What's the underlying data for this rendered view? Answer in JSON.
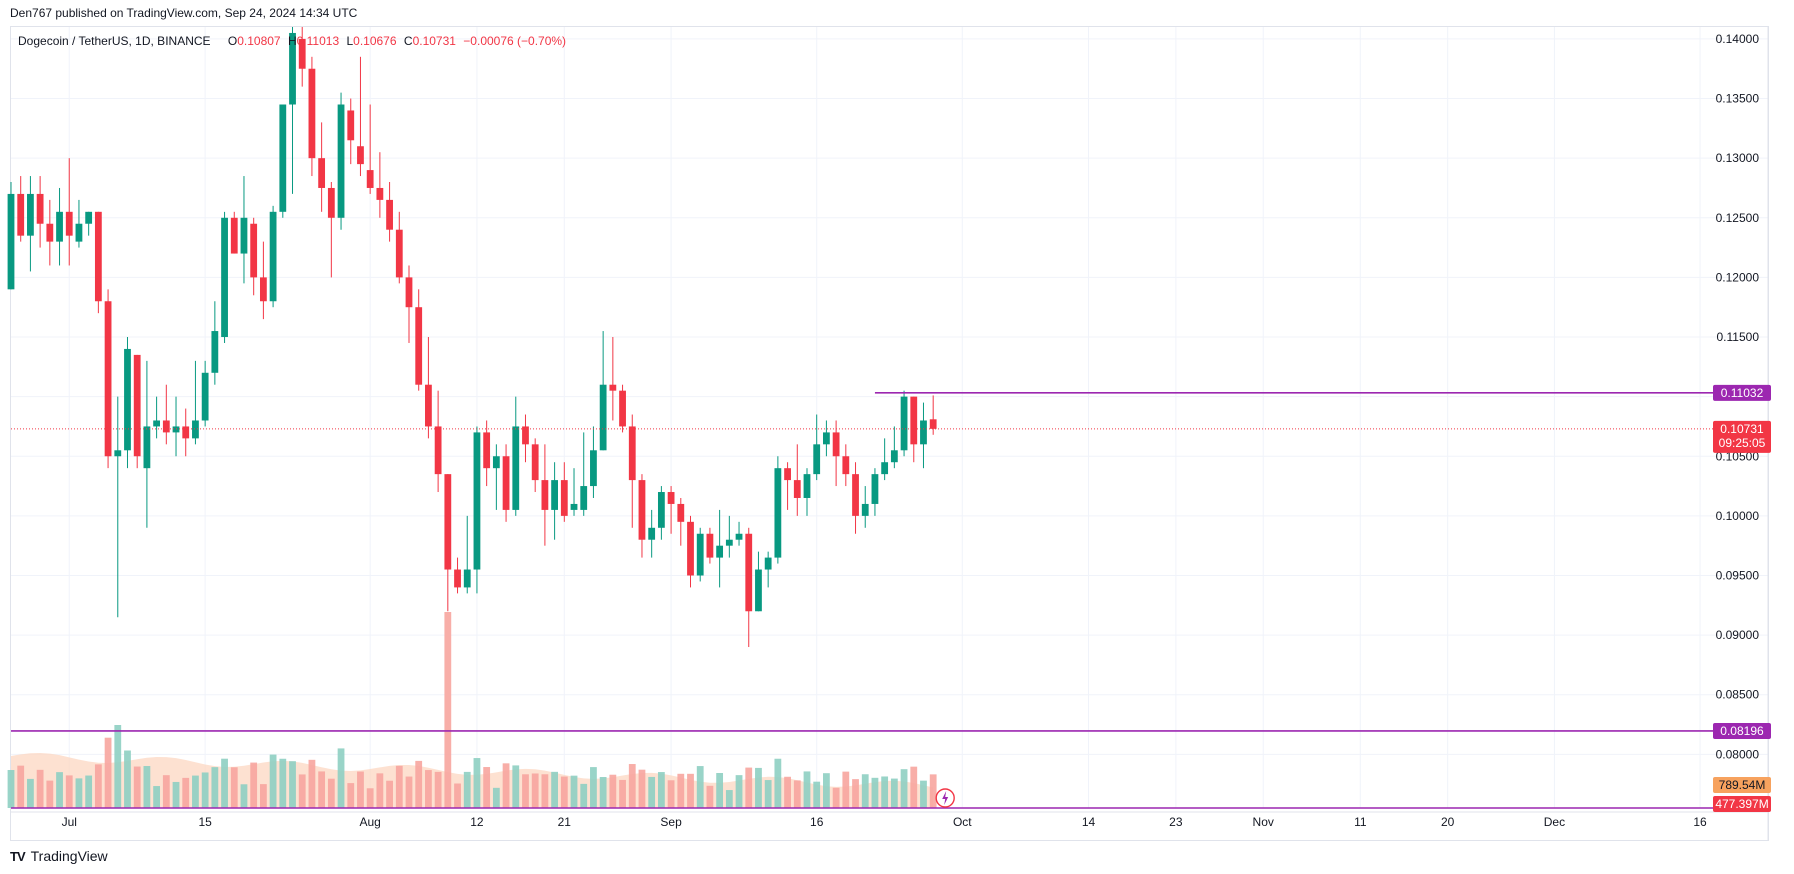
{
  "publisher": "Den767 published on TradingView.com, Sep 24, 2024 14:34 UTC",
  "legend": {
    "symbol": "Dogecoin / TetherUS, 1D, BINANCE",
    "o_label": "O",
    "o": "0.10807",
    "h_label": "H",
    "h": "0.11013",
    "l_label": "L",
    "l": "0.10676",
    "c_label": "C",
    "c": "0.10731",
    "change": "−0.00076 (−0.70%)"
  },
  "brand": {
    "name": "TradingView",
    "logo": "TV"
  },
  "colors": {
    "up": "#089981",
    "down": "#f23645",
    "level": "#9c27b0",
    "volume_up": "#f7a59e",
    "volume_ma": "#fcd7c2"
  },
  "chart_data": {
    "type": "candlestick",
    "title": "Dogecoin / TetherUS, 1D, BINANCE",
    "ylim": [
      0.0755,
      0.141
    ],
    "y_ticks": [
      "0.14000",
      "0.13500",
      "0.13000",
      "0.12500",
      "0.12000",
      "0.11500",
      "0.10500",
      "0.10000",
      "0.09500",
      "0.09000",
      "0.08500",
      "0.08000"
    ],
    "y_tick_values": [
      0.14,
      0.135,
      0.13,
      0.125,
      0.12,
      0.115,
      0.105,
      0.1,
      0.095,
      0.09,
      0.085,
      0.08
    ],
    "x_ticks": [
      {
        "label": "Jul",
        "day": 0
      },
      {
        "label": "15",
        "day": 14
      },
      {
        "label": "Aug",
        "day": 31
      },
      {
        "label": "12",
        "day": 42
      },
      {
        "label": "21",
        "day": 51
      },
      {
        "label": "Sep",
        "day": 62
      },
      {
        "label": "16",
        "day": 77
      },
      {
        "label": "Oct",
        "day": 92
      },
      {
        "label": "14",
        "day": 105
      },
      {
        "label": "23",
        "day": 114
      },
      {
        "label": "Nov",
        "day": 123
      },
      {
        "label": "11",
        "day": 133
      },
      {
        "label": "20",
        "day": 142
      },
      {
        "label": "Dec",
        "day": 153
      },
      {
        "label": "16",
        "day": 168
      }
    ],
    "first_day": -6,
    "last_day": 175,
    "candles": [
      [
        0.119,
        0.127,
        0.128,
        0.119
      ],
      [
        0.127,
        0.1235,
        0.1285,
        0.123
      ],
      [
        0.1235,
        0.127,
        0.1285,
        0.1205
      ],
      [
        0.127,
        0.1245,
        0.1285,
        0.1225
      ],
      [
        0.1245,
        0.123,
        0.1265,
        0.121
      ],
      [
        0.123,
        0.1255,
        0.1275,
        0.121
      ],
      [
        0.1255,
        0.1235,
        0.13,
        0.121
      ],
      [
        0.123,
        0.1245,
        0.1265,
        0.1225
      ],
      [
        0.1245,
        0.1255,
        0.1255,
        0.1235
      ],
      [
        0.1255,
        0.118,
        0.1255,
        0.117
      ],
      [
        0.118,
        0.105,
        0.119,
        0.104
      ],
      [
        0.105,
        0.1055,
        0.11,
        0.0915
      ],
      [
        0.1055,
        0.114,
        0.115,
        0.104
      ],
      [
        0.1135,
        0.105,
        0.1135,
        0.104
      ],
      [
        0.104,
        0.1075,
        0.113,
        0.099
      ],
      [
        0.1075,
        0.108,
        0.11,
        0.1065
      ],
      [
        0.108,
        0.107,
        0.111,
        0.106
      ],
      [
        0.107,
        0.1075,
        0.11,
        0.105
      ],
      [
        0.1075,
        0.1065,
        0.109,
        0.105
      ],
      [
        0.1065,
        0.108,
        0.113,
        0.106
      ],
      [
        0.108,
        0.112,
        0.113,
        0.1075
      ],
      [
        0.112,
        0.1155,
        0.118,
        0.111
      ],
      [
        0.115,
        0.125,
        0.1255,
        0.1145
      ],
      [
        0.125,
        0.122,
        0.1255,
        0.122
      ],
      [
        0.122,
        0.125,
        0.1285,
        0.1195
      ],
      [
        0.1245,
        0.12,
        0.125,
        0.1185
      ],
      [
        0.12,
        0.118,
        0.123,
        0.1165
      ],
      [
        0.118,
        0.1255,
        0.126,
        0.1175
      ],
      [
        0.1255,
        0.1345,
        0.1345,
        0.125
      ],
      [
        0.1345,
        0.1405,
        0.141,
        0.127
      ],
      [
        0.14,
        0.1375,
        0.141,
        0.136
      ],
      [
        0.1375,
        0.13,
        0.1385,
        0.1285
      ],
      [
        0.13,
        0.1275,
        0.133,
        0.1255
      ],
      [
        0.1275,
        0.125,
        0.128,
        0.12
      ],
      [
        0.125,
        0.1345,
        0.1355,
        0.124
      ],
      [
        0.134,
        0.1315,
        0.135,
        0.1295
      ],
      [
        0.131,
        0.1295,
        0.1385,
        0.1285
      ],
      [
        0.129,
        0.1275,
        0.1345,
        0.127
      ],
      [
        0.1275,
        0.1265,
        0.1305,
        0.125
      ],
      [
        0.1265,
        0.124,
        0.128,
        0.123
      ],
      [
        0.124,
        0.12,
        0.1255,
        0.1195
      ],
      [
        0.12,
        0.1175,
        0.121,
        0.1145
      ],
      [
        0.1175,
        0.111,
        0.119,
        0.1105
      ],
      [
        0.111,
        0.1075,
        0.115,
        0.1065
      ],
      [
        0.1075,
        0.1035,
        0.1105,
        0.102
      ],
      [
        0.1035,
        0.0955,
        0.1035,
        0.092
      ],
      [
        0.0955,
        0.094,
        0.0965,
        0.0935
      ],
      [
        0.094,
        0.0955,
        0.1,
        0.0935
      ],
      [
        0.0955,
        0.107,
        0.1075,
        0.0935
      ],
      [
        0.107,
        0.104,
        0.108,
        0.1025
      ],
      [
        0.104,
        0.105,
        0.106,
        0.1005
      ],
      [
        0.105,
        0.1005,
        0.106,
        0.0995
      ],
      [
        0.1005,
        0.1075,
        0.11,
        0.1
      ],
      [
        0.1075,
        0.106,
        0.1085,
        0.1045
      ],
      [
        0.106,
        0.103,
        0.1065,
        0.102
      ],
      [
        0.103,
        0.1005,
        0.106,
        0.0975
      ],
      [
        0.1005,
        0.103,
        0.1045,
        0.098
      ],
      [
        0.103,
        0.1,
        0.1045,
        0.0995
      ],
      [
        0.1005,
        0.101,
        0.104,
        0.1
      ],
      [
        0.1005,
        0.1025,
        0.107,
        0.1
      ],
      [
        0.1025,
        0.1055,
        0.1075,
        0.1015
      ],
      [
        0.1055,
        0.111,
        0.1155,
        0.1055
      ],
      [
        0.111,
        0.1105,
        0.115,
        0.108
      ],
      [
        0.1105,
        0.1075,
        0.111,
        0.107
      ],
      [
        0.1075,
        0.103,
        0.1085,
        0.099
      ],
      [
        0.103,
        0.098,
        0.1035,
        0.0965
      ],
      [
        0.098,
        0.099,
        0.1005,
        0.0965
      ],
      [
        0.099,
        0.102,
        0.1025,
        0.098
      ],
      [
        0.102,
        0.101,
        0.1025,
        0.0985
      ],
      [
        0.101,
        0.0995,
        0.1015,
        0.0975
      ],
      [
        0.0995,
        0.095,
        0.1,
        0.094
      ],
      [
        0.095,
        0.0985,
        0.099,
        0.0945
      ],
      [
        0.0985,
        0.0965,
        0.099,
        0.096
      ],
      [
        0.0965,
        0.0975,
        0.1005,
        0.094
      ],
      [
        0.0975,
        0.098,
        0.1,
        0.0965
      ],
      [
        0.098,
        0.0985,
        0.0995,
        0.0975
      ],
      [
        0.0985,
        0.092,
        0.099,
        0.089
      ],
      [
        0.092,
        0.0955,
        0.097,
        0.092
      ],
      [
        0.0955,
        0.0965,
        0.097,
        0.094
      ],
      [
        0.0965,
        0.104,
        0.105,
        0.096
      ],
      [
        0.104,
        0.103,
        0.1045,
        0.1005
      ],
      [
        0.103,
        0.1015,
        0.106,
        0.1
      ],
      [
        0.1015,
        0.1035,
        0.104,
        0.1
      ],
      [
        0.1035,
        0.106,
        0.1085,
        0.103
      ],
      [
        0.106,
        0.107,
        0.108,
        0.105
      ],
      [
        0.107,
        0.105,
        0.108,
        0.1025
      ],
      [
        0.105,
        0.1035,
        0.106,
        0.1025
      ],
      [
        0.1035,
        0.1,
        0.1045,
        0.0985
      ],
      [
        0.1,
        0.101,
        0.1025,
        0.099
      ],
      [
        0.101,
        0.1035,
        0.104,
        0.1
      ],
      [
        0.1035,
        0.1045,
        0.1065,
        0.103
      ],
      [
        0.1045,
        0.1055,
        0.1075,
        0.104
      ],
      [
        0.1055,
        0.11,
        0.1105,
        0.105
      ],
      [
        0.11,
        0.106,
        0.11,
        0.1045
      ],
      [
        0.106,
        0.108,
        0.1095,
        0.104
      ],
      [
        0.1081,
        0.1073,
        0.1101,
        0.1068
      ]
    ],
    "volume_label": "789.54M",
    "volume_ma_label": "477.397M",
    "spike_volume_index": 45,
    "price_label": "0.10731",
    "countdown": "09:25:05",
    "levels": [
      {
        "label": "0.11032",
        "value": 0.11032,
        "from_day": 83
      },
      {
        "label": "0.08196",
        "value": 0.08196,
        "from_day": -6
      }
    ]
  }
}
